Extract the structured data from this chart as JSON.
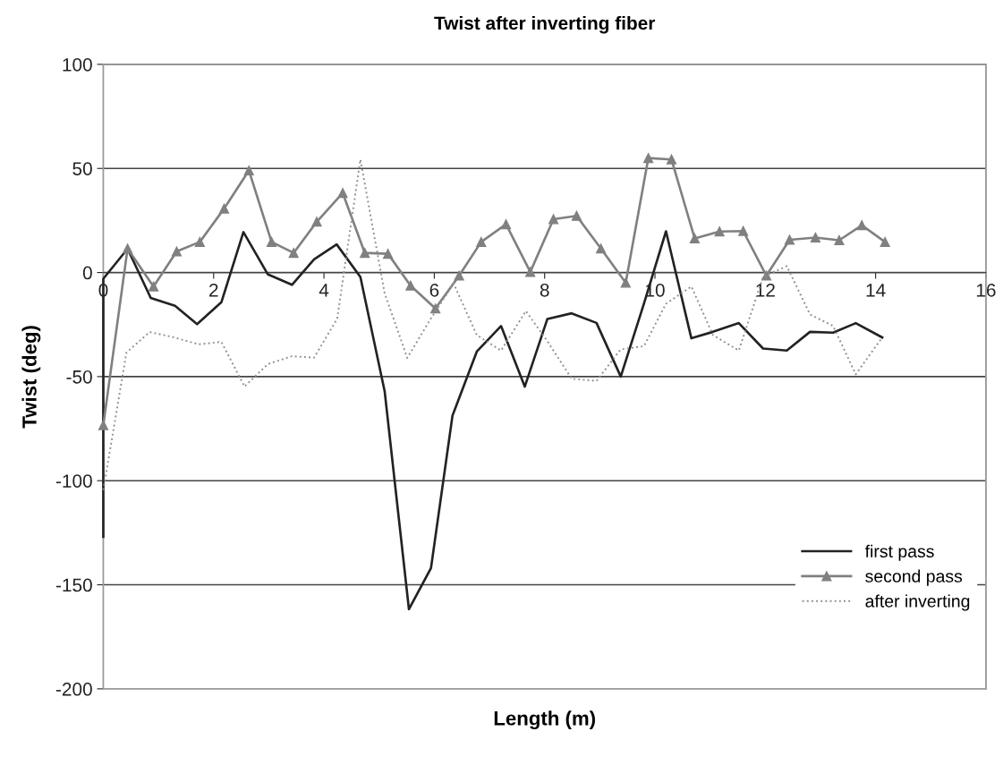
{
  "chart_data": {
    "type": "line",
    "title": "Twist after inverting fiber",
    "xlabel": "Length (m)",
    "ylabel": "Twist (deg)",
    "xlim": [
      0,
      16
    ],
    "xticks": [
      0,
      2,
      4,
      6,
      8,
      10,
      12,
      14,
      16
    ],
    "ylim": [
      -200,
      100
    ],
    "yticks": [
      -200,
      -150,
      -100,
      -50,
      0,
      50,
      100
    ],
    "grid": "y",
    "legend": "bottom right",
    "series": [
      {
        "name": "first pass",
        "color": "#222222",
        "marker": "none",
        "line_style": "solid",
        "x": [
          0,
          0,
          0.44,
          0.86,
          1.3,
          1.7,
          2.14,
          2.54,
          2.98,
          3.42,
          3.82,
          4.23,
          4.66,
          5.1,
          5.54,
          5.94,
          6.33,
          6.77,
          7.21,
          7.64,
          8.05,
          8.49,
          8.94,
          9.38,
          9.8,
          10.2,
          10.66,
          11.05,
          11.52,
          11.96,
          12.39,
          12.81,
          13.23,
          13.64,
          14.12
        ],
        "values": [
          -127,
          -3,
          11.4,
          -12.2,
          -16,
          -24.8,
          -14.3,
          19.4,
          -0.8,
          -5.9,
          6.3,
          13.5,
          -2.1,
          -57,
          -161.7,
          -142,
          -68.7,
          -38,
          -25.7,
          -54.8,
          -22.3,
          -19.6,
          -24.2,
          -50,
          -15,
          19.8,
          -31.6,
          -28.5,
          -24.3,
          -36.5,
          -37.5,
          -28.5,
          -28.9,
          -24.3,
          -31.2
        ]
      },
      {
        "name": "second pass",
        "color": "#808080",
        "marker": "triangle",
        "line_style": "solid",
        "x": [
          0,
          0.44,
          0.91,
          1.33,
          1.75,
          2.19,
          2.64,
          3.05,
          3.45,
          3.87,
          4.34,
          4.74,
          5.16,
          5.57,
          6.02,
          6.45,
          6.85,
          7.3,
          7.74,
          8.16,
          8.58,
          9.02,
          9.47,
          9.88,
          10.3,
          10.72,
          11.17,
          11.6,
          12.02,
          12.44,
          12.91,
          13.34,
          13.75,
          14.17
        ],
        "values": [
          -73.3,
          11.5,
          -6.7,
          10.1,
          14.7,
          30.7,
          49,
          14.7,
          9.4,
          24.4,
          38.2,
          9.4,
          9,
          -6.3,
          -17.3,
          -1.5,
          14.7,
          23.2,
          0.3,
          25.6,
          27.2,
          11.5,
          -4.9,
          55,
          54.3,
          16.4,
          19.7,
          19.9,
          -1.5,
          15.7,
          16.8,
          15.5,
          22.7,
          14.7
        ]
      },
      {
        "name": "after inverting",
        "color": "#909090",
        "marker": "none",
        "line_style": "dotted",
        "x": [
          0,
          0.42,
          0.84,
          1.26,
          1.73,
          2.14,
          2.56,
          2.98,
          3.42,
          3.82,
          4.24,
          4.66,
          5.1,
          5.51,
          5.94,
          6.35,
          6.77,
          7.21,
          7.66,
          8.05,
          8.49,
          8.94,
          9.38,
          9.8,
          10.2,
          10.66,
          11.05,
          11.52,
          11.96,
          12.39,
          12.81,
          13.23,
          13.64,
          14.12
        ],
        "values": [
          -104.5,
          -38.4,
          -28.6,
          -31,
          -34.5,
          -33.3,
          -54.8,
          -44,
          -40.2,
          -40.9,
          -22.2,
          54.3,
          -10,
          -41,
          -22,
          -5.3,
          -30,
          -37.5,
          -18.5,
          -33,
          -51,
          -52.1,
          -36.9,
          -35.4,
          -15,
          -6.7,
          -30,
          -37.5,
          -2,
          3.1,
          -20.1,
          -25.7,
          -48.9,
          -31.2
        ]
      }
    ]
  }
}
